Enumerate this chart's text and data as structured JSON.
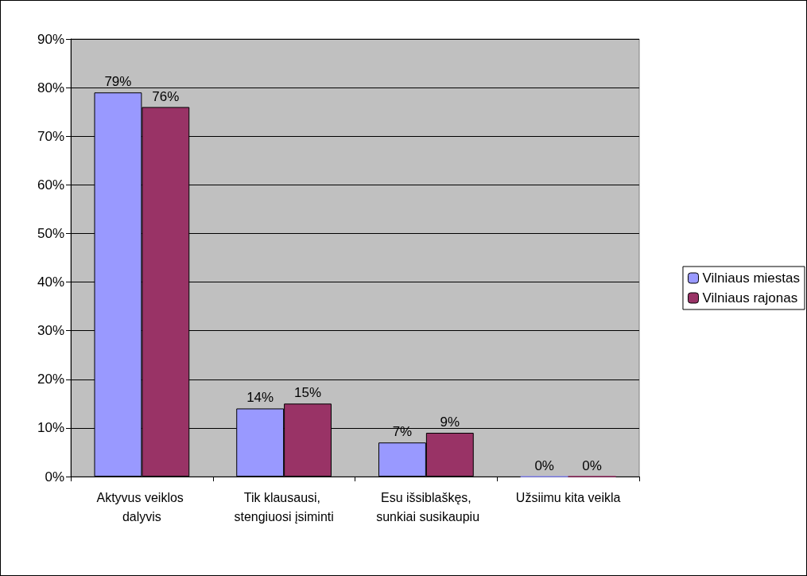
{
  "chart_data": {
    "type": "bar",
    "categories": [
      "Aktyvus veiklos dalyvis",
      "Tik klausausi, stengiuosi įsiminti",
      "Esu išsiblaškęs, sunkiai susikaupiu",
      "Užsiimu kita veikla"
    ],
    "series": [
      {
        "name": "Vilniaus miestas",
        "color": "#9999ff",
        "values": [
          79,
          14,
          7,
          0
        ],
        "value_labels": [
          "79%",
          "14%",
          "7%",
          "0%"
        ]
      },
      {
        "name": "Vilniaus rajonas",
        "color": "#993366",
        "values": [
          76,
          15,
          9,
          0
        ],
        "value_labels": [
          "76%",
          "15%",
          "9%",
          "0%"
        ]
      }
    ],
    "ylim": [
      0,
      90
    ],
    "yticks": [
      {
        "value": 0,
        "label": "0%"
      },
      {
        "value": 10,
        "label": "10%"
      },
      {
        "value": 20,
        "label": "20%"
      },
      {
        "value": 30,
        "label": "30%"
      },
      {
        "value": 40,
        "label": "40%"
      },
      {
        "value": 50,
        "label": "50%"
      },
      {
        "value": 60,
        "label": "60%"
      },
      {
        "value": 70,
        "label": "70%"
      },
      {
        "value": 80,
        "label": "80%"
      },
      {
        "value": 90,
        "label": "90%"
      }
    ],
    "grid": "y",
    "legend": "right"
  }
}
